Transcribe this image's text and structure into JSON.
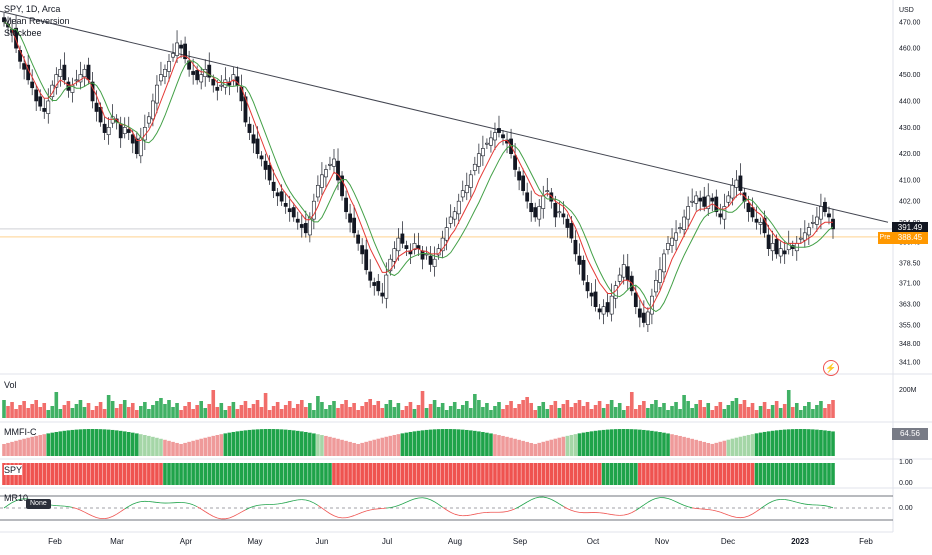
{
  "legend": {
    "symbol_line": "SPY, 1D, Arca",
    "indicator1": "Mean Reversion",
    "indicator2": "Stockbee"
  },
  "price_axis": {
    "currency": "USD",
    "ticks": [
      "470.00",
      "460.00",
      "450.00",
      "440.00",
      "430.00",
      "420.00",
      "410.00",
      "402.00",
      "394.00",
      "386.45",
      "378.50",
      "371.00",
      "363.00",
      "355.00",
      "348.00",
      "341.00"
    ],
    "last_price_label": "391.49",
    "pre_label": "Pre",
    "pre_price_label": "388.45"
  },
  "time_axis": {
    "labels": [
      "Feb",
      "Mar",
      "Apr",
      "May",
      "Jun",
      "Jul",
      "Aug",
      "Sep",
      "Oct",
      "Nov",
      "Dec",
      "2023",
      "Feb"
    ]
  },
  "volume_pane": {
    "label": "Vol",
    "axis_label": "200M"
  },
  "mmfi_pane": {
    "label": "MMFI-C",
    "value_badge": "64.56"
  },
  "spy_pane": {
    "label": "SPY",
    "axis_ticks": [
      "1.00",
      "0.00"
    ]
  },
  "mr10_pane": {
    "label": "MR10",
    "tag": "None",
    "axis_tick": "0.00"
  },
  "colors": {
    "up": "#26a69a",
    "up_green": "#1fa34a",
    "down": "#ef5350",
    "price_badge": "#131722",
    "pre_badge": "#ff9800",
    "trendline": "#434651",
    "ema_red": "#e53935",
    "ema_green": "#43a047"
  },
  "icons": {
    "alert": "lightning-icon"
  },
  "chart_data": {
    "type": "candlestick",
    "title": "SPY, 1D, Arca",
    "y_range": [
      338,
      476
    ],
    "last_close": 391.49,
    "premarket": 388.45,
    "month_ticks": [
      "Feb",
      "Mar",
      "Apr",
      "May",
      "Jun",
      "Jul",
      "Aug",
      "Sep",
      "Oct",
      "Nov",
      "Dec",
      "2023",
      "Feb"
    ],
    "closes": [
      470,
      468,
      466,
      460,
      455,
      452,
      448,
      445,
      440,
      438,
      436,
      440,
      446,
      450,
      452,
      448,
      444,
      446,
      448,
      450,
      452,
      448,
      440,
      436,
      432,
      428,
      430,
      434,
      432,
      426,
      430,
      428,
      424,
      420,
      426,
      430,
      434,
      440,
      446,
      450,
      452,
      455,
      458,
      462,
      460,
      456,
      452,
      450,
      448,
      450,
      452,
      449,
      446,
      444,
      446,
      448,
      446,
      450,
      446,
      440,
      432,
      428,
      424,
      420,
      418,
      414,
      410,
      406,
      404,
      402,
      400,
      398,
      396,
      394,
      392,
      390,
      396,
      402,
      408,
      412,
      414,
      416,
      418,
      410,
      404,
      398,
      394,
      390,
      386,
      382,
      376,
      372,
      370,
      368,
      366,
      374,
      380,
      384,
      388,
      386,
      384,
      382,
      386,
      384,
      380,
      382,
      378,
      380,
      384,
      388,
      392,
      396,
      398,
      402,
      406,
      408,
      412,
      416,
      420,
      422,
      424,
      426,
      428,
      428,
      426,
      424,
      420,
      414,
      410,
      406,
      402,
      398,
      396,
      400,
      404,
      406,
      402,
      396,
      398,
      396,
      392,
      388,
      382,
      378,
      372,
      368,
      366,
      362,
      360,
      362,
      360,
      366,
      370,
      374,
      378,
      372,
      368,
      362,
      358,
      356,
      360,
      366,
      372,
      376,
      382,
      386,
      388,
      390,
      392,
      396,
      400,
      402,
      404,
      402,
      400,
      404,
      402,
      398,
      396,
      400,
      404,
      408,
      410,
      406,
      402,
      398,
      396,
      394,
      394,
      390,
      384,
      386,
      382,
      384,
      382,
      386,
      384,
      386,
      388,
      390,
      392,
      394,
      396,
      400,
      398,
      396,
      391.49
    ],
    "ema_fast": [
      470,
      469,
      467,
      463,
      459,
      456,
      452,
      449,
      446,
      443,
      441,
      441,
      443,
      446,
      448,
      447,
      446,
      446,
      447,
      448,
      449,
      448,
      445,
      442,
      438,
      434,
      433,
      433,
      433,
      431,
      431,
      430,
      428,
      425,
      425,
      427,
      429,
      432,
      436,
      440,
      444,
      448,
      452,
      456,
      457,
      457,
      456,
      454,
      452,
      451,
      451,
      450,
      449,
      447,
      447,
      447,
      447,
      448,
      447,
      445,
      441,
      437,
      433,
      429,
      425,
      421,
      417,
      413,
      410,
      407,
      405,
      403,
      401,
      399,
      397,
      395,
      395,
      397,
      400,
      404,
      407,
      410,
      413,
      412,
      410,
      407,
      403,
      400,
      396,
      392,
      388,
      384,
      381,
      378,
      375,
      375,
      376,
      378,
      381,
      382,
      383,
      383,
      384,
      384,
      383,
      383,
      382,
      382,
      382,
      384,
      386,
      389,
      391,
      394,
      397,
      400,
      403,
      406,
      410,
      413,
      416,
      419,
      422,
      424,
      425,
      425,
      423,
      420,
      417,
      414,
      411,
      408,
      405,
      404,
      404,
      405,
      404,
      402,
      401,
      400,
      398,
      395,
      392,
      388,
      384,
      380,
      377,
      374,
      371,
      369,
      367,
      367,
      368,
      370,
      372,
      372,
      371,
      368,
      365,
      362,
      361,
      362,
      365,
      368,
      372,
      376,
      380,
      383,
      386,
      389,
      392,
      395,
      398,
      399,
      399,
      400,
      401,
      400,
      399,
      399,
      400,
      402,
      404,
      405,
      404,
      402,
      400,
      398,
      397,
      395,
      392,
      390,
      388,
      387,
      386,
      386,
      386,
      386,
      386,
      387,
      388,
      389,
      391,
      393,
      394,
      394,
      394
    ],
    "ema_slow_segments": "green segment shown during uptrends, red during downtrends",
    "trendline_start": 474,
    "trendline_end": 394
  }
}
